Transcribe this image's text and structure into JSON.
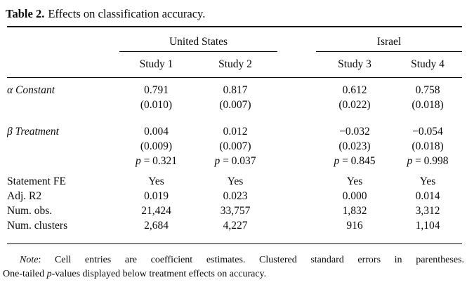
{
  "title": {
    "label": "Table 2.",
    "text": "Effects on classification accuracy."
  },
  "table": {
    "groups": [
      {
        "label": "United States"
      },
      {
        "label": "Israel"
      }
    ],
    "columns": [
      "Study 1",
      "Study 2",
      "Study 3",
      "Study 4"
    ],
    "pval_prefix": "p",
    "pval_eq": " = ",
    "rows": [
      {
        "label": "α Constant",
        "italic": true,
        "type": "coef",
        "section_start": true,
        "values": [
          "0.791",
          "0.817",
          "0.612",
          "0.758"
        ]
      },
      {
        "label": "",
        "type": "se",
        "values": [
          "(0.010)",
          "(0.007)",
          "(0.022)",
          "(0.018)"
        ]
      },
      {
        "label": "β Treatment",
        "italic": true,
        "type": "coef",
        "section_start": true,
        "values": [
          "0.004",
          "0.012",
          "−0.032",
          "−0.054"
        ]
      },
      {
        "label": "",
        "type": "se",
        "values": [
          "(0.009)",
          "(0.007)",
          "(0.023)",
          "(0.018)"
        ]
      },
      {
        "label": "",
        "type": "pval",
        "values": [
          "0.321",
          "0.037",
          "0.845",
          "0.998"
        ]
      },
      {
        "label": "Statement FE",
        "type": "stat",
        "section_start": true,
        "values": [
          "Yes",
          "Yes",
          "Yes",
          "Yes"
        ]
      },
      {
        "label": "Adj. R2",
        "type": "stat",
        "values": [
          "0.019",
          "0.023",
          "0.000",
          "0.014"
        ]
      },
      {
        "label": "Num. obs.",
        "type": "stat",
        "values": [
          "21,424",
          "33,757",
          "1,832",
          "3,312"
        ]
      },
      {
        "label": "Num. clusters",
        "type": "stat",
        "values": [
          "2,684",
          "4,227",
          "916",
          "1,104"
        ]
      }
    ]
  },
  "note": {
    "line1": [
      {
        "text": "Note",
        "italic": true
      },
      {
        "text": ": Cell entries are coefficient estimates. Clustered standard errors in parentheses.",
        "italic": false
      }
    ],
    "line2": [
      {
        "text": "One-tailed ",
        "italic": false
      },
      {
        "text": "p",
        "italic": true
      },
      {
        "text": "-values displayed below treatment effects on accuracy.",
        "italic": false
      }
    ]
  },
  "colors": {
    "text": "#0a0a0a",
    "background": "#ffffff",
    "rule": "#0a0a0a"
  }
}
